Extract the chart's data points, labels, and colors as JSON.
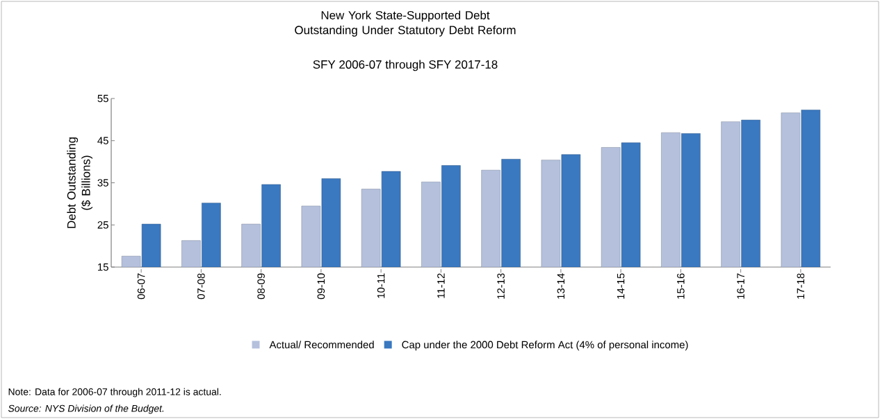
{
  "chart_data": {
    "type": "bar",
    "title": "New York State-Supported Debt Outstanding Under Statutory Debt Reform",
    "subtitle": "SFY 2006-07 through SFY 2017-18",
    "ylabel": "Debt Outstanding ($ Billions)",
    "categories": [
      "06-07",
      "07-08",
      "08-09",
      "09-10",
      "10-11",
      "11-12",
      "12-13",
      "13-14",
      "14-15",
      "15-16",
      "16-17",
      "17-18"
    ],
    "series": [
      {
        "name": "Actual/ Recommended",
        "color": "#b4c0dc",
        "values": [
          17.6,
          21.3,
          25.2,
          29.5,
          33.5,
          35.2,
          38.0,
          40.4,
          43.4,
          46.9,
          49.5,
          51.6
        ]
      },
      {
        "name": "Cap under the 2000 Debt Reform Act (4% of personal income)",
        "color": "#3a78c0",
        "values": [
          25.2,
          30.2,
          34.6,
          36.0,
          37.7,
          39.1,
          40.6,
          41.7,
          44.5,
          46.7,
          49.9,
          52.3
        ]
      }
    ],
    "ylim": [
      15,
      55
    ],
    "yticks": [
      15,
      25,
      35,
      45,
      55
    ],
    "legend": "bottom",
    "annotations": [
      "Note: Data for 2006-07 through 2011-12 is actual.",
      "Source: NYS Division of the Budget."
    ]
  }
}
